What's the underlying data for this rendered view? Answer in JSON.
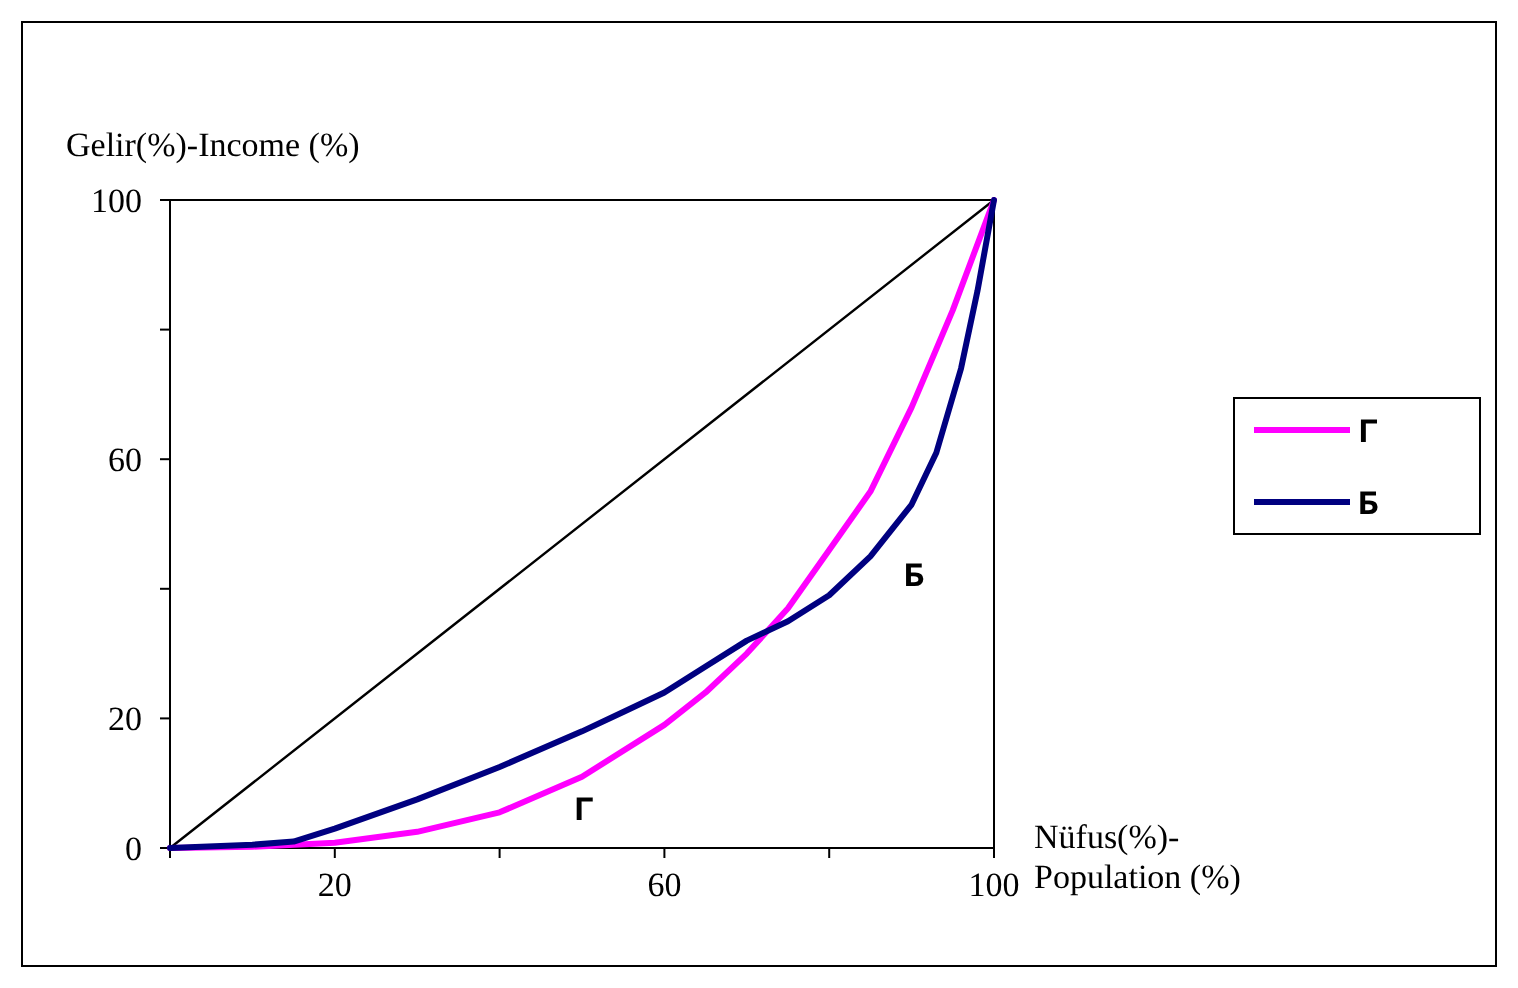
{
  "chart_data": {
    "type": "line",
    "xlabel": "Nüfus(%)-Population (%)",
    "ylabel": "Gelir(%)-Income (%)",
    "xlim": [
      0,
      100
    ],
    "ylim": [
      0,
      100
    ],
    "xticks": [
      {
        "value": 0,
        "label": null
      },
      20,
      {
        "value": 40,
        "label": null
      },
      60,
      {
        "value": 80,
        "label": null
      },
      100
    ],
    "yticks": [
      0,
      20,
      {
        "value": 40,
        "label": null
      },
      60,
      {
        "value": 80,
        "label": null
      },
      100
    ],
    "grid": false,
    "legend": "right",
    "marker": "none",
    "line_style": "solid",
    "series": [
      {
        "x": [
          0,
          100
        ],
        "values": [
          0,
          100
        ],
        "color": "#000000"
      },
      {
        "name": "Г",
        "color": "#ff00ff",
        "x": [
          0,
          10,
          20,
          30,
          40,
          50,
          60,
          65,
          70,
          75,
          80,
          85,
          90,
          95,
          100
        ],
        "values": [
          0,
          0.2,
          0.8,
          2.5,
          5.5,
          11,
          19,
          24,
          30,
          37,
          46,
          55,
          68,
          83,
          100
        ]
      },
      {
        "name": "Б",
        "color": "#000080",
        "x": [
          0,
          10,
          15,
          20,
          30,
          40,
          50,
          55,
          60,
          65,
          70,
          75,
          80,
          85,
          90,
          93,
          96,
          98,
          100
        ],
        "values": [
          0,
          0.5,
          1,
          3,
          7.5,
          12.5,
          18,
          21,
          24,
          28,
          32,
          35,
          39,
          45,
          53,
          61,
          74,
          86,
          100
        ]
      }
    ],
    "annotations": [
      "Г",
      "Б"
    ]
  }
}
